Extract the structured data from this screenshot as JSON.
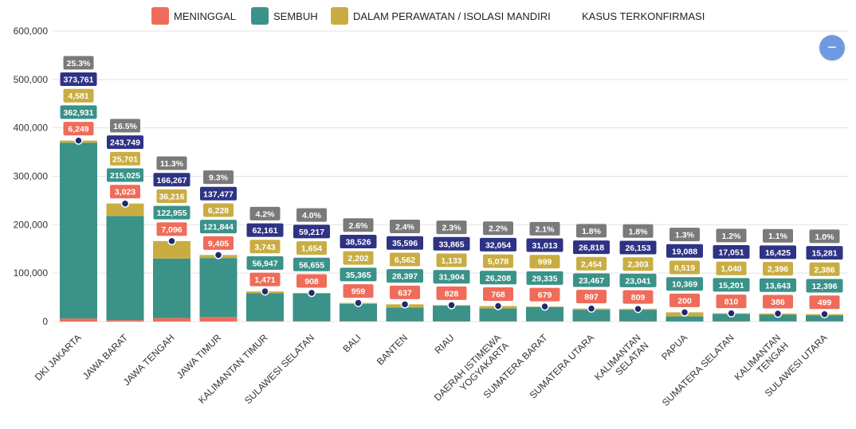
{
  "legend": {
    "meninggal": "MENINGGAL",
    "sembuh": "SEMBUH",
    "dalam_perawatan": "DALAM PERAWATAN / ISOLASI MANDIRI",
    "kasus_terkonfirmasi": "KASUS TERKONFIRMASI"
  },
  "collapse_button_label": "−",
  "colors": {
    "meninggal": "#ee6c59",
    "sembuh": "#3a9289",
    "dalam_perawatan": "#c9ad43",
    "total_label": "#2f3384",
    "percent_label": "#7a7a7a",
    "marker": "#1e2a6e"
  },
  "chart_data": {
    "type": "bar",
    "stacked": true,
    "categories": [
      [
        "DKI JAKARTA"
      ],
      [
        "JAWA BARAT"
      ],
      [
        "JAWA TENGAH"
      ],
      [
        "JAWA TIMUR"
      ],
      [
        "KALIMANTAN TIMUR"
      ],
      [
        "SULAWESI SELATAN"
      ],
      [
        "BALI"
      ],
      [
        "BANTEN"
      ],
      [
        "RIAU"
      ],
      [
        "DAERAH ISTIMEWA",
        "YOGYAKARTA"
      ],
      [
        "SUMATERA BARAT"
      ],
      [
        "SUMATERA UTARA"
      ],
      [
        "KALIMANTAN",
        "SELATAN"
      ],
      [
        "PAPUA"
      ],
      [
        "SUMATERA SELATAN"
      ],
      [
        "KALIMANTAN",
        "TENGAH"
      ],
      [
        "SULAWESI UTARA"
      ]
    ],
    "series": [
      {
        "name": "MENINGGAL",
        "values": [
          6249,
          3023,
          7096,
          9405,
          1471,
          908,
          959,
          637,
          828,
          768,
          679,
          897,
          809,
          200,
          810,
          386,
          499
        ]
      },
      {
        "name": "SEMBUH",
        "values": [
          362931,
          215025,
          122955,
          121844,
          56947,
          56655,
          35365,
          28397,
          31904,
          26208,
          29335,
          23467,
          23041,
          10369,
          15201,
          13643,
          12396
        ]
      },
      {
        "name": "DALAM PERAWATAN / ISOLASI MANDIRI",
        "values": [
          4581,
          25701,
          36216,
          6228,
          3743,
          1654,
          2202,
          6562,
          1133,
          5078,
          999,
          2454,
          2303,
          8519,
          1040,
          2396,
          2386
        ]
      }
    ],
    "totals": {
      "name": "KASUS TERKONFIRMASI",
      "values": [
        373761,
        243749,
        166267,
        137477,
        62161,
        59217,
        38526,
        35596,
        33865,
        32054,
        31013,
        26818,
        26153,
        19088,
        17051,
        16425,
        15281
      ]
    },
    "percentages": [
      "25.3%",
      "16.5%",
      "11.3%",
      "9.3%",
      "4.2%",
      "4.0%",
      "2.6%",
      "2.4%",
      "2.3%",
      "2.2%",
      "2.1%",
      "1.8%",
      "1.8%",
      "1.3%",
      "1.2%",
      "1.1%",
      "1.0%"
    ],
    "ylim": [
      0,
      600000
    ],
    "yticks": [
      "0",
      "100,000",
      "200,000",
      "300,000",
      "400,000",
      "500,000",
      "600,000"
    ],
    "grid": true,
    "legend_position": "top"
  }
}
